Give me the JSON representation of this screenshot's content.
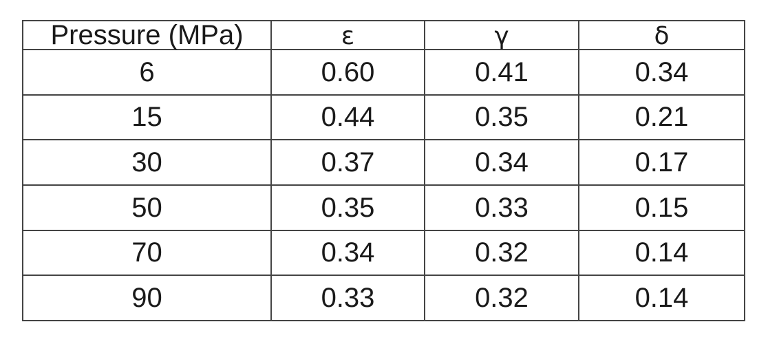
{
  "table": {
    "headers": [
      "Pressure (MPa)",
      "ε",
      "γ",
      "δ"
    ],
    "rows": [
      [
        "6",
        "0.60",
        "0.41",
        "0.34"
      ],
      [
        "15",
        "0.44",
        "0.35",
        "0.21"
      ],
      [
        "30",
        "0.37",
        "0.34",
        "0.17"
      ],
      [
        "50",
        "0.35",
        "0.33",
        "0.15"
      ],
      [
        "70",
        "0.34",
        "0.32",
        "0.14"
      ],
      [
        "90",
        "0.33",
        "0.32",
        "0.14"
      ]
    ]
  }
}
